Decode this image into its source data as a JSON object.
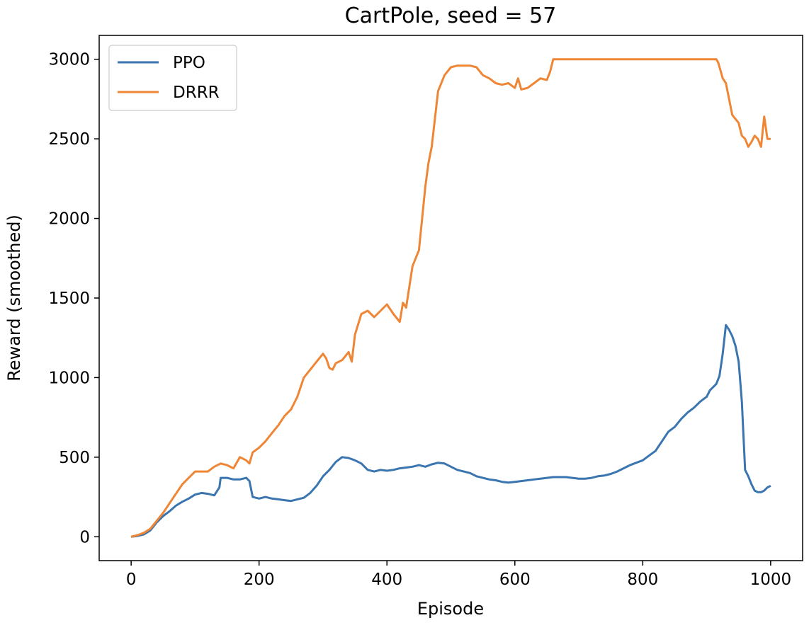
{
  "chart_data": {
    "type": "line",
    "title": "CartPole, seed = 57",
    "xlabel": "Episode",
    "ylabel": "Reward (smoothed)",
    "xlim": [
      -50,
      1050
    ],
    "ylim": [
      -150,
      3150
    ],
    "xticks": [
      0,
      200,
      400,
      600,
      800,
      1000
    ],
    "yticks": [
      0,
      500,
      1000,
      1500,
      2000,
      2500,
      3000
    ],
    "grid": false,
    "legend_position": "upper-left",
    "series": [
      {
        "name": "PPO",
        "color": "#3a75af",
        "x": [
          0,
          10,
          20,
          30,
          40,
          50,
          60,
          70,
          80,
          90,
          100,
          110,
          120,
          130,
          138,
          140,
          150,
          160,
          170,
          180,
          185,
          190,
          200,
          210,
          220,
          230,
          240,
          250,
          260,
          270,
          280,
          290,
          300,
          310,
          320,
          330,
          340,
          350,
          360,
          370,
          380,
          390,
          400,
          410,
          420,
          430,
          440,
          450,
          460,
          470,
          480,
          490,
          500,
          510,
          520,
          530,
          540,
          550,
          560,
          570,
          580,
          590,
          600,
          610,
          620,
          630,
          640,
          650,
          660,
          670,
          680,
          690,
          700,
          710,
          720,
          730,
          740,
          750,
          760,
          770,
          780,
          790,
          800,
          810,
          820,
          830,
          840,
          850,
          860,
          870,
          880,
          890,
          900,
          905,
          910,
          915,
          920,
          925,
          930,
          935,
          940,
          945,
          950,
          955,
          960,
          965,
          970,
          975,
          980,
          985,
          990,
          995,
          1000
        ],
        "values": [
          0,
          5,
          15,
          40,
          90,
          130,
          160,
          195,
          220,
          240,
          265,
          275,
          270,
          260,
          310,
          370,
          370,
          360,
          360,
          370,
          350,
          250,
          240,
          250,
          240,
          235,
          230,
          225,
          235,
          245,
          275,
          320,
          380,
          420,
          470,
          500,
          495,
          480,
          460,
          420,
          410,
          420,
          415,
          420,
          430,
          435,
          440,
          450,
          440,
          455,
          465,
          460,
          440,
          420,
          410,
          400,
          380,
          370,
          360,
          355,
          345,
          340,
          345,
          350,
          355,
          360,
          365,
          370,
          375,
          375,
          375,
          370,
          365,
          365,
          370,
          380,
          385,
          395,
          410,
          430,
          450,
          465,
          480,
          510,
          540,
          600,
          660,
          690,
          740,
          780,
          810,
          850,
          880,
          920,
          940,
          960,
          1010,
          1150,
          1330,
          1300,
          1260,
          1200,
          1100,
          850,
          420,
          380,
          330,
          290,
          280,
          280,
          290,
          310,
          320
        ]
      },
      {
        "name": "DRRR",
        "color": "#ef8636",
        "x": [
          0,
          10,
          20,
          30,
          40,
          50,
          60,
          70,
          80,
          90,
          100,
          110,
          120,
          130,
          140,
          150,
          160,
          170,
          180,
          185,
          190,
          200,
          210,
          220,
          230,
          240,
          250,
          260,
          270,
          280,
          290,
          300,
          305,
          310,
          315,
          320,
          330,
          340,
          345,
          350,
          360,
          370,
          380,
          390,
          400,
          410,
          420,
          425,
          430,
          440,
          450,
          460,
          465,
          470,
          480,
          490,
          500,
          510,
          520,
          530,
          540,
          550,
          560,
          570,
          580,
          590,
          600,
          605,
          610,
          620,
          630,
          640,
          650,
          655,
          660,
          670,
          680,
          700,
          750,
          800,
          850,
          900,
          915,
          918,
          925,
          930,
          940,
          950,
          955,
          960,
          965,
          970,
          975,
          980,
          985,
          990,
          995,
          1000
        ],
        "values": [
          0,
          10,
          25,
          50,
          100,
          150,
          210,
          270,
          330,
          370,
          410,
          410,
          410,
          440,
          460,
          450,
          430,
          500,
          480,
          460,
          530,
          560,
          600,
          650,
          700,
          760,
          800,
          880,
          1000,
          1050,
          1100,
          1150,
          1120,
          1060,
          1050,
          1090,
          1110,
          1160,
          1100,
          1270,
          1400,
          1420,
          1380,
          1420,
          1460,
          1400,
          1350,
          1470,
          1440,
          1700,
          1800,
          2200,
          2350,
          2450,
          2800,
          2900,
          2950,
          2960,
          2960,
          2960,
          2950,
          2900,
          2880,
          2850,
          2840,
          2850,
          2820,
          2880,
          2810,
          2820,
          2850,
          2880,
          2870,
          2920,
          3000,
          3000,
          3000,
          3000,
          3000,
          3000,
          3000,
          3000,
          3000,
          2980,
          2880,
          2850,
          2650,
          2600,
          2520,
          2500,
          2450,
          2480,
          2520,
          2500,
          2450,
          2640,
          2500,
          2500
        ]
      }
    ]
  }
}
